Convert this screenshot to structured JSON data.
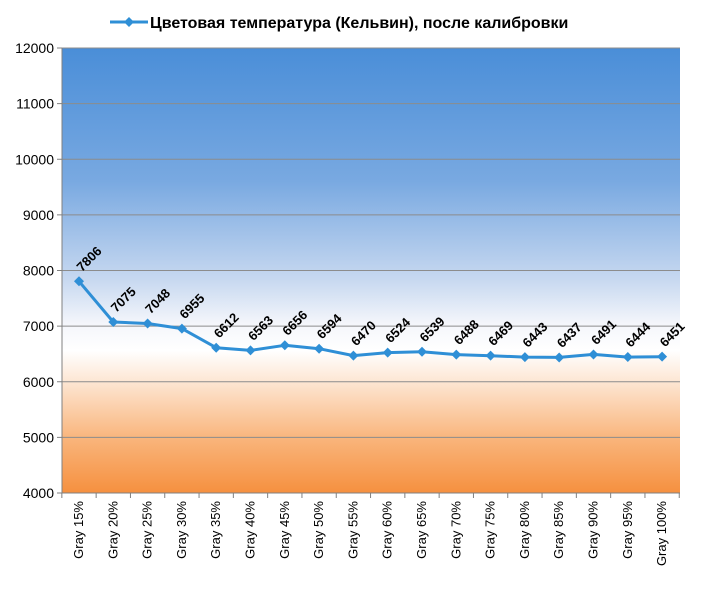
{
  "chart_data": {
    "type": "line",
    "title": "",
    "xlabel": "",
    "ylabel": "",
    "categories": [
      "Gray 15%",
      "Gray 20%",
      "Gray 25%",
      "Gray 30%",
      "Gray 35%",
      "Gray 40%",
      "Gray 45%",
      "Gray 50%",
      "Gray 55%",
      "Gray 60%",
      "Gray 65%",
      "Gray 70%",
      "Gray 75%",
      "Gray 80%",
      "Gray 85%",
      "Gray 90%",
      "Gray 95%",
      "Gray 100%"
    ],
    "series": [
      {
        "name": "Цветовая температура (Кельвин), после калибровки",
        "values": [
          7806,
          7075,
          7048,
          6955,
          6612,
          6563,
          6656,
          6594,
          6470,
          6524,
          6539,
          6488,
          6469,
          6443,
          6437,
          6491,
          6444,
          6451
        ],
        "color": "#2f8fd6",
        "marker": "diamond"
      }
    ],
    "ylim": [
      4000,
      12000
    ],
    "yticks": [
      4000,
      5000,
      6000,
      7000,
      8000,
      9000,
      10000,
      11000,
      12000
    ],
    "grid": true,
    "legend": "top",
    "data_labels": true,
    "background": "gradient: blue top (#4a8ed8) to white (~7000) to orange bottom (#f7913f)"
  }
}
